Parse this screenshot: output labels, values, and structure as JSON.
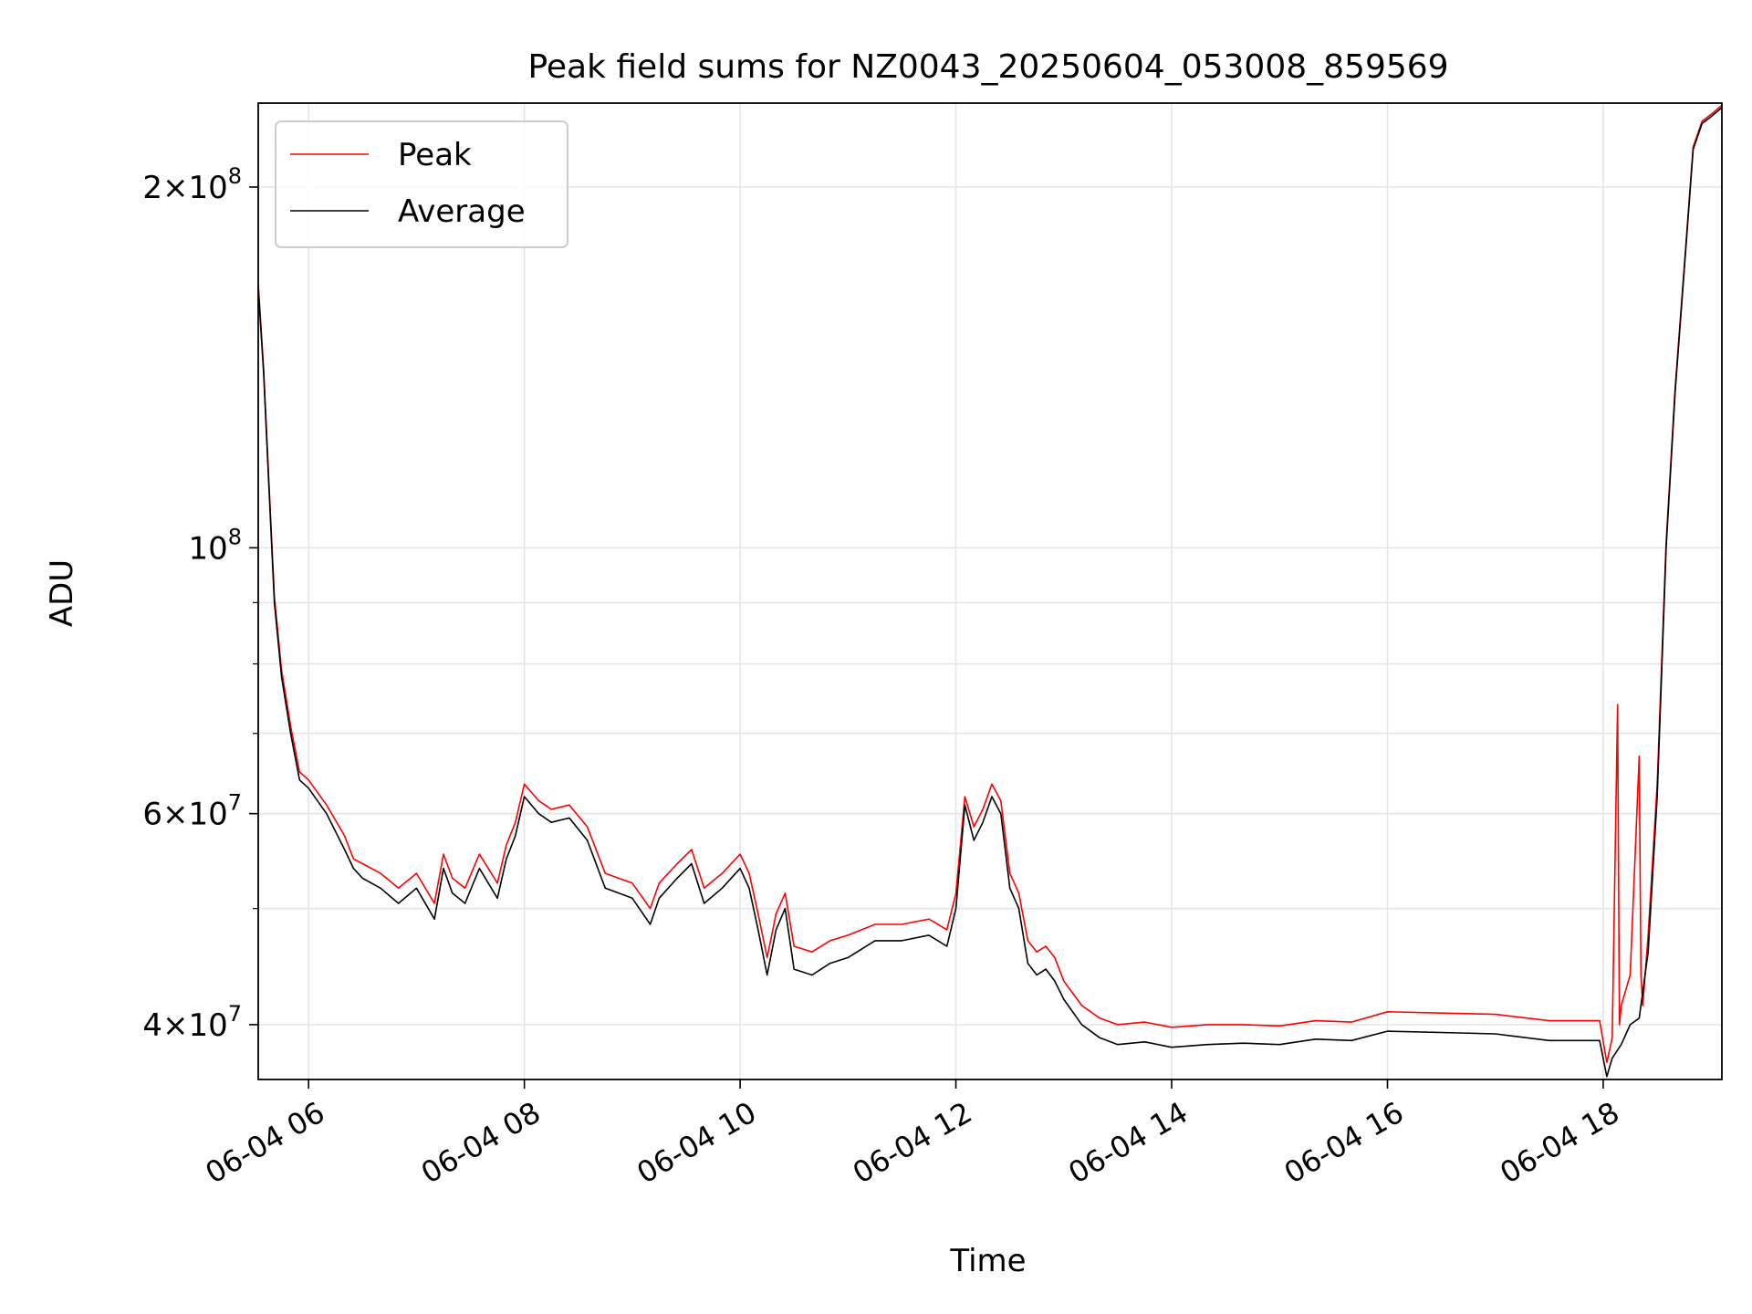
{
  "chart_data": {
    "type": "line",
    "title": "Peak field sums for NZ0043_20250604_053008_859569",
    "xlabel": "Time",
    "ylabel": "ADU",
    "yscale": "log",
    "ylim": [
      36000000,
      235000000
    ],
    "xlim": [
      "06-04 05:32",
      "06-04 19:06"
    ],
    "grid": true,
    "legend": {
      "position": "top-left",
      "entries": [
        "Peak",
        "Average"
      ]
    },
    "x_ticks": [
      "06-04 06",
      "06-04 08",
      "06-04 10",
      "06-04 12",
      "06-04 14",
      "06-04 16",
      "06-04 18"
    ],
    "y_ticks": [
      {
        "value": 40000000,
        "mantissa": "4",
        "exponent": "7"
      },
      {
        "value": 60000000,
        "mantissa": "6",
        "exponent": "7"
      },
      {
        "value": 100000000,
        "mantissa": "",
        "exponent": "8"
      },
      {
        "value": 200000000,
        "mantissa": "2",
        "exponent": "8"
      }
    ],
    "series": [
      {
        "name": "Average",
        "color": "#000000",
        "x": [
          "06-04 05:32",
          "06-04 05:35",
          "06-04 05:38",
          "06-04 05:41",
          "06-04 05:45",
          "06-04 05:50",
          "06-04 05:55",
          "06-04 06:00",
          "06-04 06:10",
          "06-04 06:20",
          "06-04 06:25",
          "06-04 06:30",
          "06-04 06:40",
          "06-04 06:50",
          "06-04 07:00",
          "06-04 07:10",
          "06-04 07:15",
          "06-04 07:20",
          "06-04 07:27",
          "06-04 07:35",
          "06-04 07:45",
          "06-04 07:50",
          "06-04 07:55",
          "06-04 08:00",
          "06-04 08:08",
          "06-04 08:15",
          "06-04 08:25",
          "06-04 08:35",
          "06-04 08:45",
          "06-04 09:00",
          "06-04 09:10",
          "06-04 09:15",
          "06-04 09:25",
          "06-04 09:33",
          "06-04 09:40",
          "06-04 09:50",
          "06-04 10:00",
          "06-04 10:05",
          "06-04 10:10",
          "06-04 10:15",
          "06-04 10:20",
          "06-04 10:25",
          "06-04 10:30",
          "06-04 10:40",
          "06-04 10:50",
          "06-04 11:00",
          "06-04 11:15",
          "06-04 11:30",
          "06-04 11:45",
          "06-04 11:55",
          "06-04 12:00",
          "06-04 12:05",
          "06-04 12:10",
          "06-04 12:15",
          "06-04 12:20",
          "06-04 12:25",
          "06-04 12:30",
          "06-04 12:35",
          "06-04 12:40",
          "06-04 12:45",
          "06-04 12:50",
          "06-04 12:55",
          "06-04 13:00",
          "06-04 13:10",
          "06-04 13:20",
          "06-04 13:30",
          "06-04 13:45",
          "06-04 14:00",
          "06-04 14:20",
          "06-04 14:40",
          "06-04 15:00",
          "06-04 15:20",
          "06-04 15:40",
          "06-04 16:00",
          "06-04 16:30",
          "06-04 17:00",
          "06-04 17:30",
          "06-04 17:50",
          "06-04 17:58",
          "06-04 18:02",
          "06-04 18:05",
          "06-04 18:10",
          "06-04 18:15",
          "06-04 18:20",
          "06-04 18:25",
          "06-04 18:30",
          "06-04 18:35",
          "06-04 18:40",
          "06-04 18:45",
          "06-04 18:50",
          "06-04 18:55",
          "06-04 19:00",
          "06-04 19:06"
        ],
        "values": [
          165000000,
          140000000,
          112000000,
          90000000,
          78000000,
          70000000,
          64000000,
          63000000,
          60000000,
          56000000,
          54000000,
          53000000,
          52000000,
          50500000,
          52000000,
          49000000,
          54000000,
          51500000,
          50500000,
          54000000,
          51000000,
          55000000,
          57500000,
          62000000,
          60000000,
          59000000,
          59500000,
          57000000,
          52000000,
          51000000,
          48500000,
          51000000,
          53000000,
          54500000,
          50500000,
          52000000,
          54000000,
          52000000,
          48000000,
          44000000,
          48000000,
          50000000,
          44500000,
          44000000,
          45000000,
          45500000,
          47000000,
          47000000,
          47500000,
          46500000,
          50000000,
          61000000,
          57000000,
          59000000,
          62000000,
          60000000,
          52000000,
          50000000,
          45000000,
          44000000,
          44500000,
          43500000,
          42000000,
          40000000,
          39000000,
          38500000,
          38700000,
          38300000,
          38500000,
          38600000,
          38500000,
          38900000,
          38800000,
          39500000,
          39400000,
          39300000,
          38800000,
          38800000,
          38800000,
          36200000,
          37500000,
          38500000,
          40000000,
          40500000,
          46000000,
          62000000,
          100000000,
          135000000,
          170000000,
          215000000,
          226000000,
          229000000,
          233000000
        ]
      },
      {
        "name": "Peak",
        "color": "#ff0000",
        "x": [
          "06-04 05:32",
          "06-04 05:35",
          "06-04 05:38",
          "06-04 05:41",
          "06-04 05:45",
          "06-04 05:50",
          "06-04 05:55",
          "06-04 06:00",
          "06-04 06:10",
          "06-04 06:20",
          "06-04 06:25",
          "06-04 06:30",
          "06-04 06:40",
          "06-04 06:50",
          "06-04 07:00",
          "06-04 07:10",
          "06-04 07:15",
          "06-04 07:20",
          "06-04 07:27",
          "06-04 07:35",
          "06-04 07:45",
          "06-04 07:50",
          "06-04 07:55",
          "06-04 08:00",
          "06-04 08:08",
          "06-04 08:15",
          "06-04 08:25",
          "06-04 08:35",
          "06-04 08:45",
          "06-04 09:00",
          "06-04 09:10",
          "06-04 09:15",
          "06-04 09:25",
          "06-04 09:33",
          "06-04 09:40",
          "06-04 09:50",
          "06-04 10:00",
          "06-04 10:05",
          "06-04 10:10",
          "06-04 10:15",
          "06-04 10:20",
          "06-04 10:25",
          "06-04 10:30",
          "06-04 10:40",
          "06-04 10:50",
          "06-04 11:00",
          "06-04 11:15",
          "06-04 11:30",
          "06-04 11:45",
          "06-04 11:55",
          "06-04 12:00",
          "06-04 12:05",
          "06-04 12:10",
          "06-04 12:15",
          "06-04 12:20",
          "06-04 12:25",
          "06-04 12:30",
          "06-04 12:35",
          "06-04 12:40",
          "06-04 12:45",
          "06-04 12:50",
          "06-04 12:55",
          "06-04 13:00",
          "06-04 13:10",
          "06-04 13:20",
          "06-04 13:30",
          "06-04 13:45",
          "06-04 14:00",
          "06-04 14:20",
          "06-04 14:40",
          "06-04 15:00",
          "06-04 15:20",
          "06-04 15:40",
          "06-04 16:00",
          "06-04 16:30",
          "06-04 17:00",
          "06-04 17:30",
          "06-04 17:50",
          "06-04 17:58",
          "06-04 18:02",
          "06-04 18:05",
          "06-04 18:08",
          "06-04 18:09",
          "06-04 18:10",
          "06-04 18:15",
          "06-04 18:20",
          "06-04 18:21",
          "06-04 18:22",
          "06-04 18:25",
          "06-04 18:30",
          "06-04 18:35",
          "06-04 18:40",
          "06-04 18:45",
          "06-04 18:50",
          "06-04 18:55",
          "06-04 19:00",
          "06-04 19:06"
        ],
        "values": [
          166000000,
          141000000,
          113000000,
          91000000,
          79000000,
          71000000,
          65000000,
          64000000,
          61000000,
          57500000,
          55000000,
          54500000,
          53500000,
          52000000,
          53500000,
          50500000,
          55500000,
          53000000,
          52000000,
          55500000,
          52500000,
          56500000,
          59000000,
          63500000,
          61500000,
          60500000,
          61000000,
          58500000,
          53500000,
          52500000,
          50000000,
          52500000,
          54500000,
          56000000,
          52000000,
          53500000,
          55500000,
          53500000,
          49500000,
          45500000,
          49500000,
          51500000,
          46500000,
          46000000,
          47000000,
          47500000,
          48500000,
          48500000,
          49000000,
          48000000,
          51500000,
          62000000,
          58500000,
          60500000,
          63500000,
          61500000,
          53500000,
          51500000,
          47000000,
          46000000,
          46500000,
          45500000,
          43500000,
          41500000,
          40500000,
          40000000,
          40200000,
          39800000,
          40000000,
          40000000,
          39900000,
          40300000,
          40200000,
          41000000,
          40900000,
          40800000,
          40300000,
          40300000,
          40300000,
          37200000,
          39000000,
          74000000,
          40000000,
          41500000,
          44000000,
          67000000,
          44000000,
          41500000,
          47500000,
          63500000,
          101000000,
          136000000,
          171000000,
          216000000,
          227000000,
          230000000,
          234000000
        ]
      }
    ]
  }
}
